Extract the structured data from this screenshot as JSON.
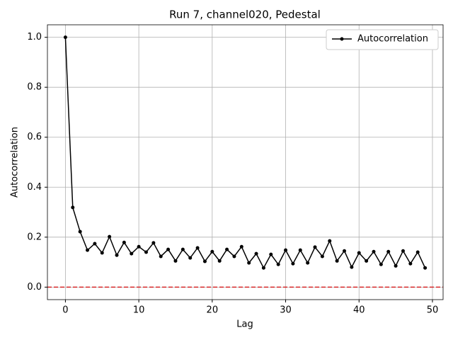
{
  "chart_data": {
    "type": "line",
    "title": "Run 7, channel020, Pedestal",
    "xlabel": "Lag",
    "ylabel": "Autocorrelation",
    "x": [
      0,
      1,
      2,
      3,
      4,
      5,
      6,
      7,
      8,
      9,
      10,
      11,
      12,
      13,
      14,
      15,
      16,
      17,
      18,
      19,
      20,
      21,
      22,
      23,
      24,
      25,
      26,
      27,
      28,
      29,
      30,
      31,
      32,
      33,
      34,
      35,
      36,
      37,
      38,
      39,
      40,
      41,
      42,
      43,
      44,
      45,
      46,
      47,
      48,
      49
    ],
    "series": [
      {
        "name": "Autocorrelation",
        "color": "#000000",
        "values": [
          1.0,
          0.319,
          0.222,
          0.148,
          0.174,
          0.137,
          0.202,
          0.128,
          0.179,
          0.134,
          0.162,
          0.14,
          0.177,
          0.123,
          0.151,
          0.105,
          0.151,
          0.117,
          0.157,
          0.103,
          0.142,
          0.105,
          0.151,
          0.123,
          0.162,
          0.097,
          0.134,
          0.077,
          0.131,
          0.091,
          0.148,
          0.094,
          0.148,
          0.097,
          0.16,
          0.123,
          0.185,
          0.105,
          0.145,
          0.08,
          0.137,
          0.105,
          0.142,
          0.091,
          0.142,
          0.085,
          0.145,
          0.094,
          0.14,
          0.077
        ]
      }
    ],
    "hline": 0,
    "hline_color": "#d62728",
    "xlim": [
      -2.45,
      51.45
    ],
    "ylim": [
      -0.05,
      1.05
    ],
    "xticks": [
      0,
      10,
      20,
      30,
      40,
      50
    ],
    "yticks": [
      {
        "value": 0,
        "label": "0.0"
      },
      {
        "value": 0.2,
        "label": "0.2"
      },
      {
        "value": 0.4,
        "label": "0.4"
      },
      {
        "value": 0.6,
        "label": "0.6"
      },
      {
        "value": 0.8,
        "label": "0.8"
      },
      {
        "value": 1,
        "label": "1.0"
      }
    ],
    "grid": true,
    "legend": "upper right"
  }
}
